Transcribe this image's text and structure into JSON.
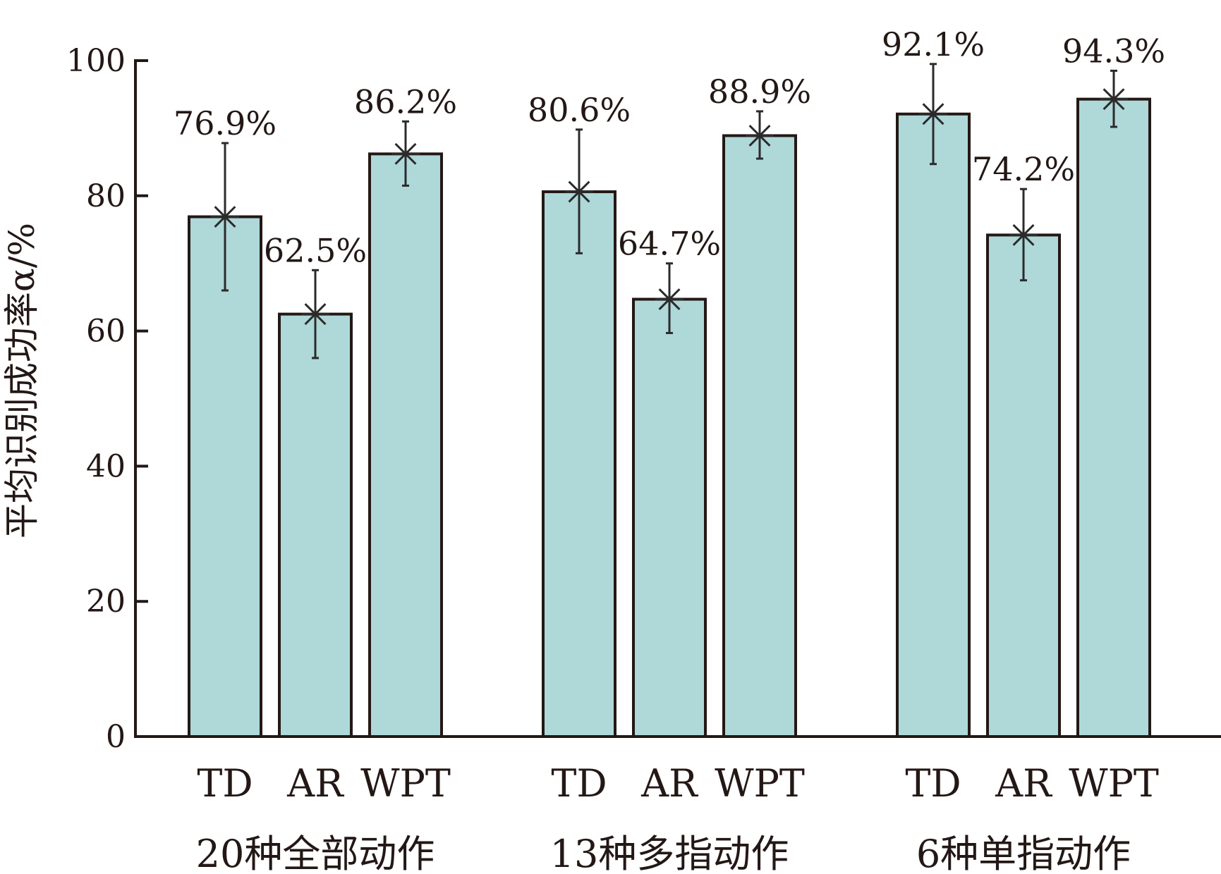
{
  "chart_data": {
    "type": "bar",
    "ylabel": "平均识别成功率α/%",
    "ylim": [
      0,
      100
    ],
    "yticks": [
      0,
      20,
      40,
      60,
      80,
      100
    ],
    "grid": false,
    "categories": [
      "TD",
      "AR",
      "WPT"
    ],
    "groups": [
      {
        "label": "20种全部动作",
        "bars": [
          {
            "category": "TD",
            "value": 76.9,
            "value_label": "76.9%",
            "err_low": 66.0,
            "err_high": 87.8
          },
          {
            "category": "AR",
            "value": 62.5,
            "value_label": "62.5%",
            "err_low": 56.0,
            "err_high": 69.0
          },
          {
            "category": "WPT",
            "value": 86.2,
            "value_label": "86.2%",
            "err_low": 81.5,
            "err_high": 91.0
          }
        ]
      },
      {
        "label": "13种多指动作",
        "bars": [
          {
            "category": "TD",
            "value": 80.6,
            "value_label": "80.6%",
            "err_low": 71.5,
            "err_high": 89.8
          },
          {
            "category": "AR",
            "value": 64.7,
            "value_label": "64.7%",
            "err_low": 59.7,
            "err_high": 70.0
          },
          {
            "category": "WPT",
            "value": 88.9,
            "value_label": "88.9%",
            "err_low": 85.5,
            "err_high": 92.5
          }
        ]
      },
      {
        "label": "6种单指动作",
        "bars": [
          {
            "category": "TD",
            "value": 92.1,
            "value_label": "92.1%",
            "err_low": 84.7,
            "err_high": 99.5
          },
          {
            "category": "AR",
            "value": 74.2,
            "value_label": "74.2%",
            "err_low": 67.5,
            "err_high": 81.0
          },
          {
            "category": "WPT",
            "value": 94.3,
            "value_label": "94.3%",
            "err_low": 90.2,
            "err_high": 98.5
          }
        ]
      }
    ],
    "colors": {
      "bar_fill": "#afd8d8",
      "bar_stroke": "#231815",
      "axis": "#231815",
      "error": "#2b2b2b"
    }
  }
}
